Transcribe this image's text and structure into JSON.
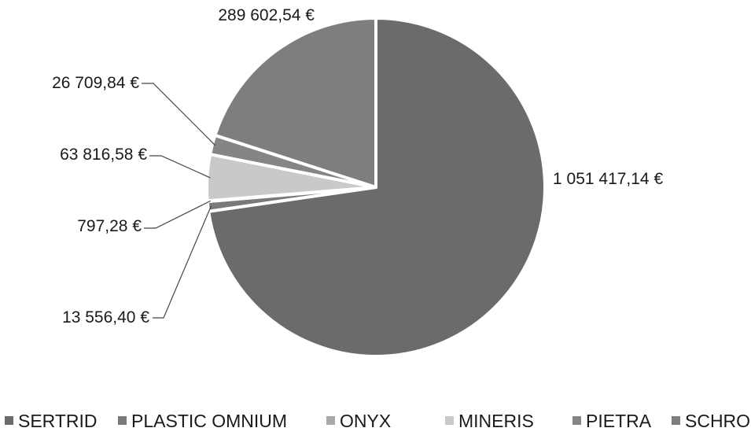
{
  "chart_data": {
    "type": "pie",
    "title": "",
    "series": [
      {
        "name": "SERTRID",
        "value": 1051417.14,
        "label": "1 051 417,14 €",
        "color": "#6b6b6b"
      },
      {
        "name": "PLASTIC OMNIUM",
        "value": 13556.4,
        "label": "13 556,40 €",
        "color": "#7a7a7a"
      },
      {
        "name": "ONYX",
        "value": 797.28,
        "label": "797,28 €",
        "color": "#a9a9a9"
      },
      {
        "name": "MINERIS",
        "value": 63816.58,
        "label": "63 816,58 €",
        "color": "#c9c9c9"
      },
      {
        "name": "PIETRA",
        "value": 26709.84,
        "label": "26 709,84 €",
        "color": "#858585"
      },
      {
        "name": "SCHROLL",
        "value": 289602.54,
        "label": "289 602,54 €",
        "color": "#7e7e7e"
      }
    ],
    "legend_position": "bottom"
  }
}
